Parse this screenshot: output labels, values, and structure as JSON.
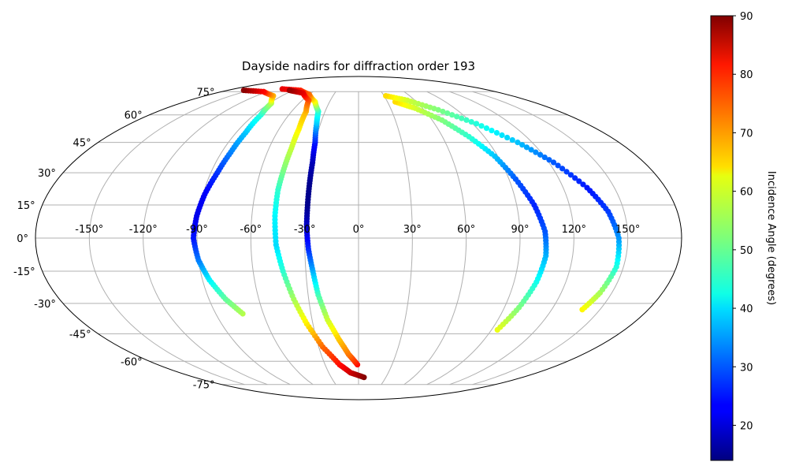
{
  "chart_data": {
    "type": "scatter",
    "projection": "mollweide",
    "title": "Dayside nadirs for diffraction order 193",
    "grid": true,
    "lon_ticks": [
      "-150°",
      "-120°",
      "-90°",
      "-60°",
      "-30°",
      "0°",
      "30°",
      "60°",
      "90°",
      "120°",
      "150°"
    ],
    "lon_tick_values": [
      -150,
      -120,
      -90,
      -60,
      -30,
      0,
      30,
      60,
      90,
      120,
      150
    ],
    "lat_ticks": [
      "75°",
      "60°",
      "45°",
      "30°",
      "15°",
      "0°",
      "-15°",
      "-30°",
      "-45°",
      "-60°",
      "-75°"
    ],
    "lat_tick_values": [
      75,
      60,
      45,
      30,
      15,
      0,
      -15,
      -30,
      -45,
      -60,
      -75
    ],
    "colorbar": {
      "label": "Incidence Angle (degrees)",
      "colormap": "jet",
      "range": [
        14,
        90
      ],
      "ticks": [
        "20",
        "30",
        "40",
        "50",
        "60",
        "70",
        "80",
        "90"
      ],
      "tick_values": [
        20,
        30,
        40,
        50,
        60,
        70,
        80,
        90
      ],
      "placement": "right"
    },
    "series": [
      {
        "points": [
          {
            "lon": -73,
            "lat": -35,
            "inc": 56
          },
          {
            "lon": -80,
            "lat": -28,
            "inc": 50
          },
          {
            "lon": -86,
            "lat": -19,
            "inc": 42
          },
          {
            "lon": -90,
            "lat": -10,
            "inc": 33
          },
          {
            "lon": -92,
            "lat": 0,
            "inc": 25
          },
          {
            "lon": -91,
            "lat": 10,
            "inc": 22
          },
          {
            "lon": -89,
            "lat": 20,
            "inc": 23
          },
          {
            "lon": -86,
            "lat": 30,
            "inc": 27
          },
          {
            "lon": -84,
            "lat": 40,
            "inc": 33
          },
          {
            "lon": -83,
            "lat": 50,
            "inc": 38
          },
          {
            "lon": -84,
            "lat": 60,
            "inc": 45
          },
          {
            "lon": -88,
            "lat": 67,
            "inc": 55
          },
          {
            "lon": -100,
            "lat": 72,
            "inc": 67
          },
          {
            "lon": -125,
            "lat": 75,
            "inc": 80
          },
          {
            "lon": -158,
            "lat": 76,
            "inc": 89
          }
        ]
      },
      {
        "points": [
          {
            "lon": -1,
            "lat": -62,
            "inc": 80
          },
          {
            "lon": -8,
            "lat": -56,
            "inc": 72
          },
          {
            "lon": -14,
            "lat": -48,
            "inc": 66
          },
          {
            "lon": -20,
            "lat": -38,
            "inc": 58
          },
          {
            "lon": -24,
            "lat": -26,
            "inc": 48
          },
          {
            "lon": -26,
            "lat": -15,
            "inc": 37
          },
          {
            "lon": -28,
            "lat": -5,
            "inc": 27
          },
          {
            "lon": -29,
            "lat": 5,
            "inc": 20
          },
          {
            "lon": -29,
            "lat": 15,
            "inc": 15
          },
          {
            "lon": -29,
            "lat": 25,
            "inc": 15
          },
          {
            "lon": -29,
            "lat": 35,
            "inc": 18
          },
          {
            "lon": -30,
            "lat": 45,
            "inc": 25
          },
          {
            "lon": -33,
            "lat": 55,
            "inc": 38
          },
          {
            "lon": -36,
            "lat": 62,
            "inc": 45
          },
          {
            "lon": -45,
            "lat": 68,
            "inc": 60
          },
          {
            "lon": -60,
            "lat": 73,
            "inc": 72
          },
          {
            "lon": -80,
            "lat": 76,
            "inc": 78
          },
          {
            "lon": -110,
            "lat": 77,
            "inc": 82
          }
        ]
      },
      {
        "points": [
          {
            "lon": 6,
            "lat": -70,
            "inc": 90
          },
          {
            "lon": -8,
            "lat": -67,
            "inc": 85
          },
          {
            "lon": -17,
            "lat": -62,
            "inc": 80
          },
          {
            "lon": -27,
            "lat": -52,
            "inc": 73
          },
          {
            "lon": -34,
            "lat": -40,
            "inc": 63
          },
          {
            "lon": -39,
            "lat": -28,
            "inc": 55
          },
          {
            "lon": -43,
            "lat": -15,
            "inc": 46
          },
          {
            "lon": -46,
            "lat": -3,
            "inc": 40
          },
          {
            "lon": -47,
            "lat": 10,
            "inc": 42
          },
          {
            "lon": -47,
            "lat": 22,
            "inc": 46
          },
          {
            "lon": -46,
            "lat": 32,
            "inc": 52
          },
          {
            "lon": -45,
            "lat": 42,
            "inc": 57
          },
          {
            "lon": -45,
            "lat": 52,
            "inc": 62
          },
          {
            "lon": -47,
            "lat": 62,
            "inc": 67
          },
          {
            "lon": -53,
            "lat": 69,
            "inc": 74
          },
          {
            "lon": -70,
            "lat": 74,
            "inc": 82
          },
          {
            "lon": -95,
            "lat": 76,
            "inc": 88
          }
        ]
      },
      {
        "points": [
          {
            "lon": 94,
            "lat": -43,
            "inc": 60
          },
          {
            "lon": 99,
            "lat": -32,
            "inc": 52
          },
          {
            "lon": 103,
            "lat": -20,
            "inc": 44
          },
          {
            "lon": 105,
            "lat": -8,
            "inc": 37
          },
          {
            "lon": 104,
            "lat": 3,
            "inc": 30
          },
          {
            "lon": 100,
            "lat": 15,
            "inc": 26
          },
          {
            "lon": 94,
            "lat": 27,
            "inc": 30
          },
          {
            "lon": 88,
            "lat": 38,
            "inc": 38
          },
          {
            "lon": 79,
            "lat": 48,
            "inc": 46
          },
          {
            "lon": 68,
            "lat": 57,
            "inc": 52
          },
          {
            "lon": 53,
            "lat": 64,
            "inc": 58
          },
          {
            "lon": 38,
            "lat": 68,
            "inc": 64
          }
        ]
      },
      {
        "points": [
          {
            "lon": 139,
            "lat": -33,
            "inc": 62
          },
          {
            "lon": 143,
            "lat": -25,
            "inc": 55
          },
          {
            "lon": 146,
            "lat": -13,
            "inc": 45
          },
          {
            "lon": 145,
            "lat": 0,
            "inc": 35
          },
          {
            "lon": 141,
            "lat": 12,
            "inc": 28
          },
          {
            "lon": 134,
            "lat": 23,
            "inc": 25
          },
          {
            "lon": 123,
            "lat": 35,
            "inc": 30
          },
          {
            "lon": 110,
            "lat": 45,
            "inc": 38
          },
          {
            "lon": 93,
            "lat": 55,
            "inc": 45
          },
          {
            "lon": 73,
            "lat": 63,
            "inc": 52
          },
          {
            "lon": 52,
            "lat": 69,
            "inc": 58
          },
          {
            "lon": 32,
            "lat": 72,
            "inc": 64
          }
        ]
      }
    ]
  }
}
